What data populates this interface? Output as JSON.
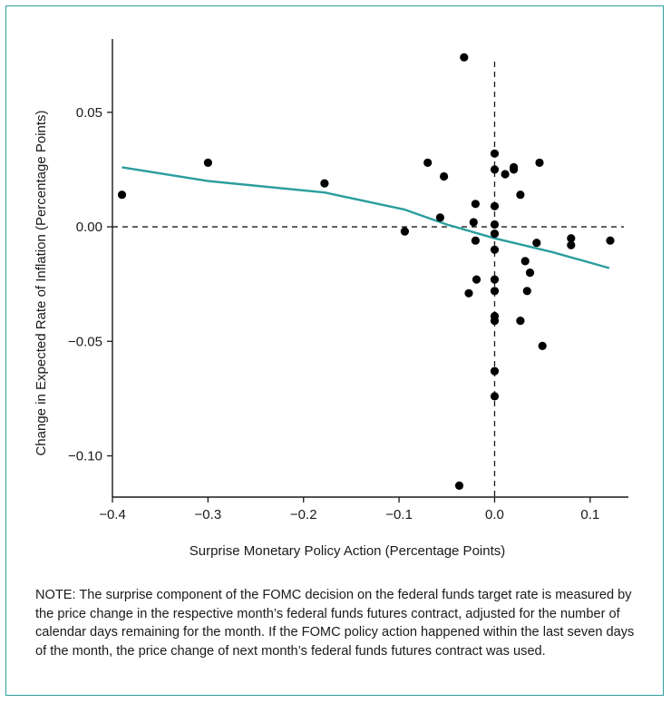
{
  "frame_color": "#2a9d9e",
  "note": "NOTE: The surprise component of the FOMC decision on the federal funds target rate is measured by the price change in the respective month’s federal funds futures contract, adjusted for the number of calendar days remaining for the month. If the FOMC policy action happened within the last seven days of the month, the price change of next month’s federal funds futures contract was used.",
  "chart_data": {
    "type": "scatter",
    "title": "",
    "xlabel": "Surprise Monetary Policy Action (Percentage Points)",
    "ylabel": "Change in Expected Rate of Inflation (Percentage Points)",
    "xlim": [
      -0.4,
      0.14
    ],
    "ylim": [
      -0.118,
      0.082
    ],
    "x_ticks": [
      -0.4,
      -0.3,
      -0.2,
      -0.1,
      0.0,
      0.1
    ],
    "x_tick_labels": [
      "−0.4",
      "−0.3",
      "−0.2",
      "−0.1",
      "0.0",
      "0.1"
    ],
    "y_ticks": [
      0.05,
      0.0,
      -0.05,
      -0.1
    ],
    "y_tick_labels": [
      "0.05",
      "0.00",
      "−0.05",
      "−0.10"
    ],
    "grid": false,
    "reference_lines": {
      "x": 0.0,
      "y": 0.0,
      "style": "dashed"
    },
    "point_color": "#000000",
    "line_color": "#2a9d9e",
    "points": [
      {
        "x": -0.39,
        "y": 0.014
      },
      {
        "x": -0.3,
        "y": 0.028
      },
      {
        "x": -0.178,
        "y": 0.019
      },
      {
        "x": -0.094,
        "y": -0.002
      },
      {
        "x": -0.07,
        "y": 0.028
      },
      {
        "x": -0.053,
        "y": 0.022
      },
      {
        "x": -0.057,
        "y": 0.004
      },
      {
        "x": -0.032,
        "y": 0.074
      },
      {
        "x": -0.037,
        "y": -0.113
      },
      {
        "x": -0.027,
        "y": -0.029
      },
      {
        "x": -0.02,
        "y": 0.01
      },
      {
        "x": -0.022,
        "y": 0.002
      },
      {
        "x": -0.02,
        "y": -0.006
      },
      {
        "x": -0.019,
        "y": -0.023
      },
      {
        "x": 0.0,
        "y": 0.032
      },
      {
        "x": 0.0,
        "y": 0.025
      },
      {
        "x": 0.0,
        "y": 0.009
      },
      {
        "x": 0.0,
        "y": 0.001
      },
      {
        "x": 0.0,
        "y": -0.003
      },
      {
        "x": 0.0,
        "y": -0.01
      },
      {
        "x": 0.0,
        "y": -0.023
      },
      {
        "x": 0.0,
        "y": -0.028
      },
      {
        "x": 0.0,
        "y": -0.039
      },
      {
        "x": 0.0,
        "y": -0.041
      },
      {
        "x": 0.0,
        "y": -0.063
      },
      {
        "x": 0.0,
        "y": -0.074
      },
      {
        "x": 0.011,
        "y": 0.023
      },
      {
        "x": 0.02,
        "y": 0.026
      },
      {
        "x": 0.02,
        "y": 0.025
      },
      {
        "x": 0.027,
        "y": 0.014
      },
      {
        "x": 0.027,
        "y": -0.041
      },
      {
        "x": 0.032,
        "y": -0.015
      },
      {
        "x": 0.034,
        "y": -0.028
      },
      {
        "x": 0.037,
        "y": -0.02
      },
      {
        "x": 0.044,
        "y": -0.007
      },
      {
        "x": 0.047,
        "y": 0.028
      },
      {
        "x": 0.05,
        "y": -0.052
      },
      {
        "x": 0.08,
        "y": -0.005
      },
      {
        "x": 0.08,
        "y": -0.008
      },
      {
        "x": 0.121,
        "y": -0.006
      }
    ],
    "fit_line": [
      {
        "x": -0.39,
        "y": 0.026
      },
      {
        "x": -0.3,
        "y": 0.02
      },
      {
        "x": -0.178,
        "y": 0.015
      },
      {
        "x": -0.094,
        "y": 0.0075
      },
      {
        "x": -0.05,
        "y": 0.001
      },
      {
        "x": 0.0,
        "y": -0.005
      },
      {
        "x": 0.06,
        "y": -0.011
      },
      {
        "x": 0.12,
        "y": -0.018
      }
    ]
  }
}
